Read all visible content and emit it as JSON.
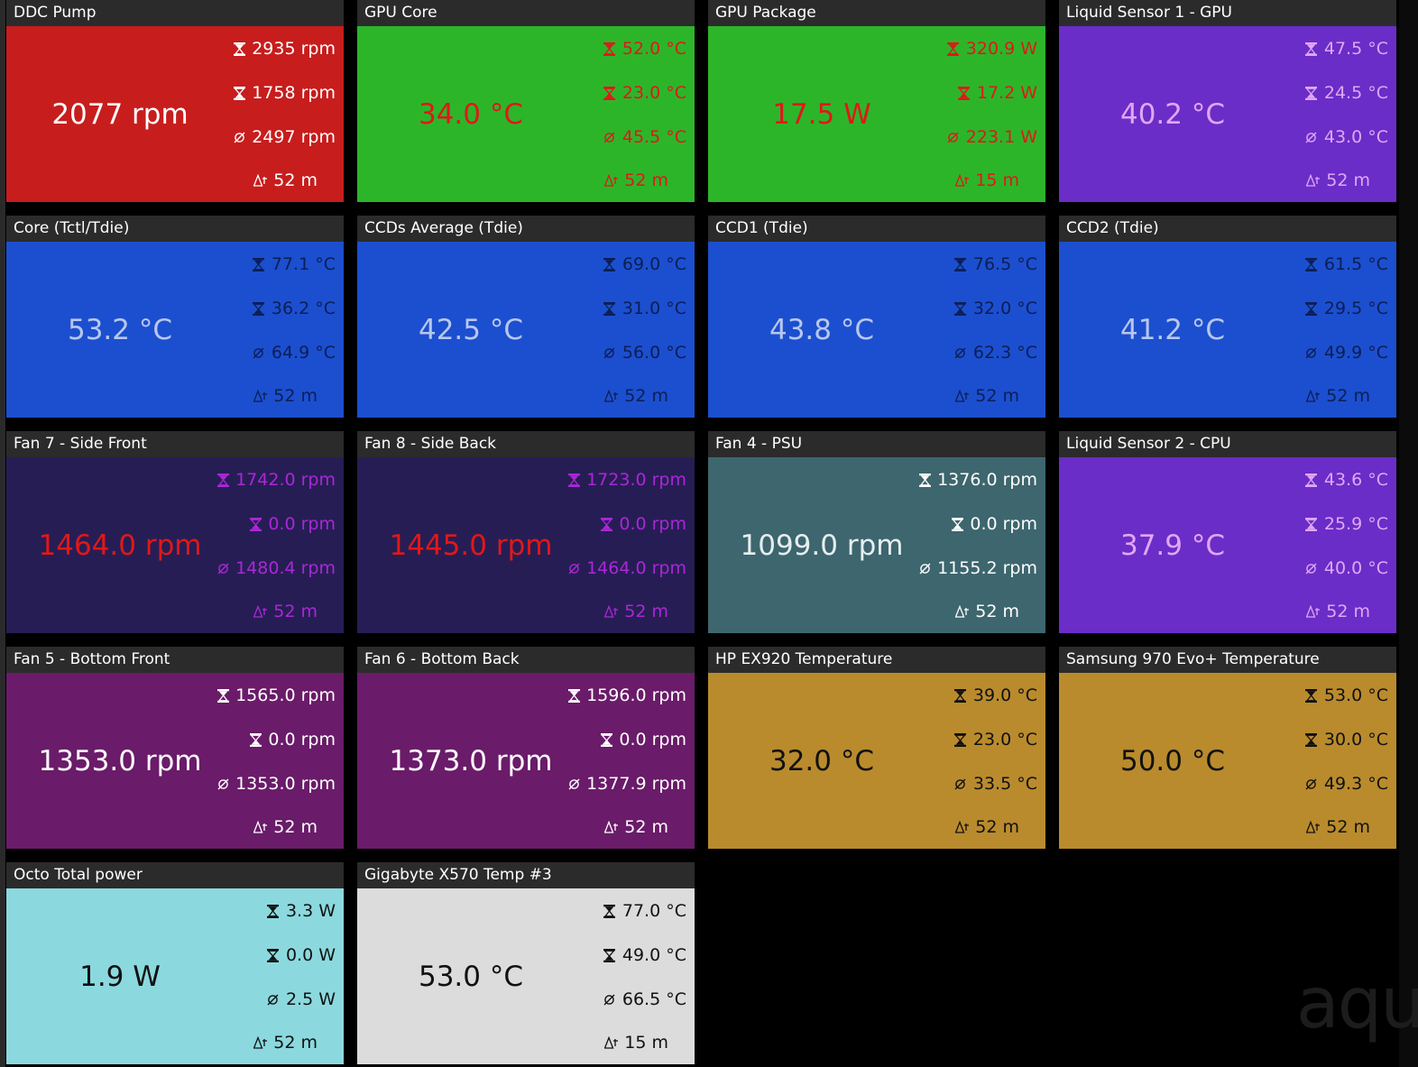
{
  "tiles": [
    {
      "title": "DDC Pump",
      "value": "2077 rpm",
      "max": "2935 rpm",
      "min": "1758 rpm",
      "avg": "2497 rpm",
      "duration": "52 m",
      "bg": "#c71d1d",
      "main_color": "#ffffff",
      "stat_color": "#ffffff"
    },
    {
      "title": "GPU Core",
      "value": "34.0 °C",
      "max": "52.0 °C",
      "min": "23.0 °C",
      "avg": "45.5 °C",
      "duration": "52 m",
      "bg": "#2db52a",
      "main_color": "#e01818",
      "stat_color": "#e01818"
    },
    {
      "title": "GPU Package",
      "value": "17.5 W",
      "max": "320.9 W",
      "min": "17.2 W",
      "avg": "223.1 W",
      "duration": "15 m",
      "bg": "#2db52a",
      "main_color": "#e01818",
      "stat_color": "#e01818"
    },
    {
      "title": "Liquid Sensor 1 - GPU",
      "value": "40.2 °C",
      "max": "47.5 °C",
      "min": "24.5 °C",
      "avg": "43.0 °C",
      "duration": "52 m",
      "bg": "#6a2dc8",
      "main_color": "#e2a6f5",
      "stat_color": "#e2a6f5"
    },
    {
      "title": "Core (Tctl/Tdie)",
      "value": "53.2 °C",
      "max": "77.1 °C",
      "min": "36.2 °C",
      "avg": "64.9 °C",
      "duration": "52 m",
      "bg": "#1c4fcf",
      "main_color": "#b7c7ee",
      "stat_color": "#0b1f56"
    },
    {
      "title": "CCDs Average (Tdie)",
      "value": "42.5 °C",
      "max": "69.0 °C",
      "min": "31.0 °C",
      "avg": "56.0 °C",
      "duration": "52 m",
      "bg": "#1c4fcf",
      "main_color": "#b7c7ee",
      "stat_color": "#0b1f56"
    },
    {
      "title": "CCD1 (Tdie)",
      "value": "43.8 °C",
      "max": "76.5 °C",
      "min": "32.0 °C",
      "avg": "62.3 °C",
      "duration": "52 m",
      "bg": "#1c4fcf",
      "main_color": "#b7c7ee",
      "stat_color": "#0b1f56"
    },
    {
      "title": "CCD2 (Tdie)",
      "value": "41.2 °C",
      "max": "61.5 °C",
      "min": "29.5 °C",
      "avg": "49.9 °C",
      "duration": "52 m",
      "bg": "#1c4fcf",
      "main_color": "#b7c7ee",
      "stat_color": "#0b1f56"
    },
    {
      "title": "Fan 7 - Side Front",
      "value": "1464.0 rpm",
      "max": "1742.0 rpm",
      "min": "0.0 rpm",
      "avg": "1480.4 rpm",
      "duration": "52 m",
      "bg": "#271d55",
      "main_color": "#e01818",
      "stat_color": "#a928d6"
    },
    {
      "title": "Fan 8 - Side Back",
      "value": "1445.0 rpm",
      "max": "1723.0 rpm",
      "min": "0.0 rpm",
      "avg": "1464.0 rpm",
      "duration": "52 m",
      "bg": "#271d55",
      "main_color": "#e01818",
      "stat_color": "#a928d6"
    },
    {
      "title": "Fan 4 - PSU",
      "value": "1099.0 rpm",
      "max": "1376.0 rpm",
      "min": "0.0 rpm",
      "avg": "1155.2 rpm",
      "duration": "52 m",
      "bg": "#3d666e",
      "main_color": "#e6eef0",
      "stat_color": "#ffffff"
    },
    {
      "title": "Liquid Sensor 2 - CPU",
      "value": "37.9 °C",
      "max": "43.6 °C",
      "min": "25.9 °C",
      "avg": "40.0 °C",
      "duration": "52 m",
      "bg": "#6a2dc8",
      "main_color": "#e2a6f5",
      "stat_color": "#e2a6f5"
    },
    {
      "title": "Fan 5 - Bottom Front",
      "value": "1353.0 rpm",
      "max": "1565.0 rpm",
      "min": "0.0 rpm",
      "avg": "1353.0 rpm",
      "duration": "52 m",
      "bg": "#6a1b69",
      "main_color": "#ffffff",
      "stat_color": "#ffffff"
    },
    {
      "title": "Fan 6 - Bottom Back",
      "value": "1373.0 rpm",
      "max": "1596.0 rpm",
      "min": "0.0 rpm",
      "avg": "1377.9 rpm",
      "duration": "52 m",
      "bg": "#6a1b69",
      "main_color": "#ffffff",
      "stat_color": "#ffffff"
    },
    {
      "title": "HP EX920 Temperature",
      "value": "32.0 °C",
      "max": "39.0 °C",
      "min": "23.0 °C",
      "avg": "33.5 °C",
      "duration": "52 m",
      "bg": "#b98b2d",
      "main_color": "#111111",
      "stat_color": "#111111"
    },
    {
      "title": "Samsung 970 Evo+ Temperature",
      "value": "50.0 °C",
      "max": "53.0 °C",
      "min": "30.0 °C",
      "avg": "49.3 °C",
      "duration": "52 m",
      "bg": "#b98b2d",
      "main_color": "#111111",
      "stat_color": "#111111"
    },
    {
      "title": "Octo Total power",
      "value": "1.9 W",
      "max": "3.3 W",
      "min": "0.0 W",
      "avg": "2.5 W",
      "duration": "52 m",
      "bg": "#8bd9de",
      "main_color": "#111111",
      "stat_color": "#111111"
    },
    {
      "title": "Gigabyte X570 Temp #3",
      "value": "53.0 °C",
      "max": "77.0 °C",
      "min": "49.0 °C",
      "avg": "66.5 °C",
      "duration": "15 m",
      "bg": "#dcdcdc",
      "main_color": "#111111",
      "stat_color": "#111111"
    }
  ],
  "icons": {
    "max": "max-hourglass-icon",
    "min": "min-hourglass-icon",
    "avg": "average-icon",
    "duration": "delta-time-icon"
  },
  "watermark": "aqu"
}
